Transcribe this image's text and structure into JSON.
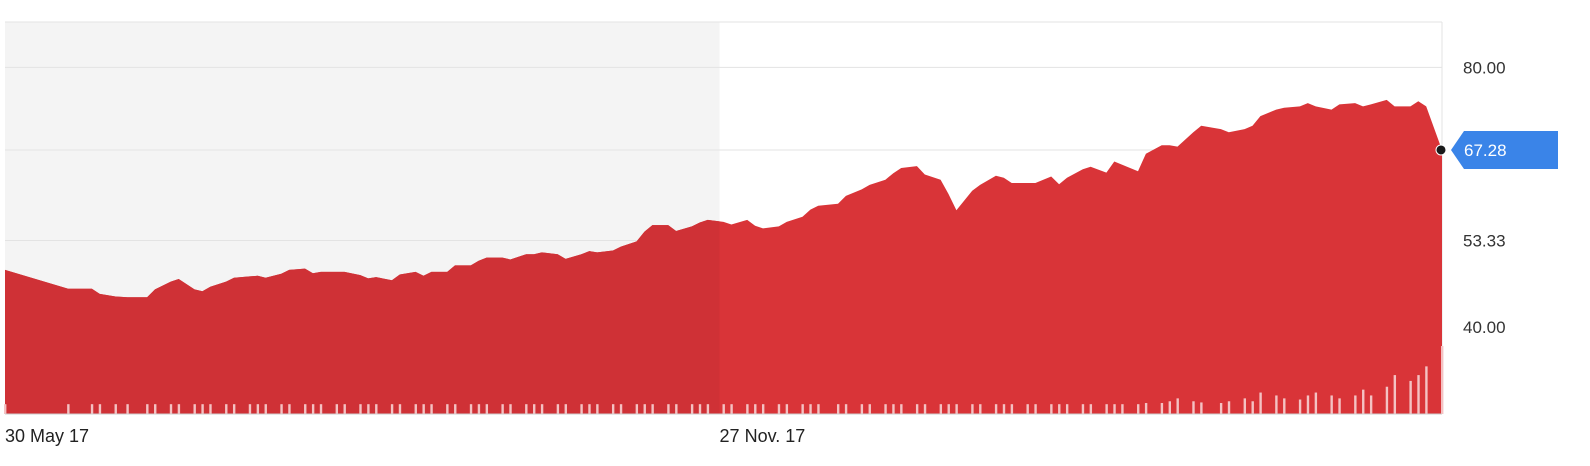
{
  "colors": {
    "area": "#d93438",
    "area_shaded": "#cf3136",
    "period_shade": "#f4f4f4",
    "volume": "#f4c2c3",
    "badge": "#3a84e8",
    "grid": "#e3e3e3"
  },
  "chart_data": {
    "type": "area",
    "ylim": [
      26.6,
      87.0
    ],
    "y_ticks": [
      "80.00",
      "53.33",
      "40.00"
    ],
    "x_tick_labels": [
      "30 May 17",
      "27 Nov. 17"
    ],
    "last_value_label": "67.28",
    "shaded_period": [
      "30 May 17",
      "27 Nov. 17"
    ],
    "series": [
      {
        "x": [
          "2017-05-30",
          "2017-06-15",
          "2017-06-21",
          "2017-06-23",
          "2017-06-27",
          "2017-06-30",
          "2017-07-05",
          "2017-07-07",
          "2017-07-11",
          "2017-07-13",
          "2017-07-17",
          "2017-07-19",
          "2017-07-21",
          "2017-07-25",
          "2017-07-27",
          "2017-07-31",
          "2017-08-02",
          "2017-08-04",
          "2017-08-08",
          "2017-08-10",
          "2017-08-14",
          "2017-08-16",
          "2017-08-18",
          "2017-08-22",
          "2017-08-24",
          "2017-08-28",
          "2017-08-30",
          "2017-09-01",
          "2017-09-05",
          "2017-09-07",
          "2017-09-11",
          "2017-09-13",
          "2017-09-15",
          "2017-09-19",
          "2017-09-21",
          "2017-09-25",
          "2017-09-27",
          "2017-09-29",
          "2017-10-03",
          "2017-10-05",
          "2017-10-09",
          "2017-10-11",
          "2017-10-13",
          "2017-10-17",
          "2017-10-19",
          "2017-10-23",
          "2017-10-25",
          "2017-10-27",
          "2017-10-31",
          "2017-11-02",
          "2017-11-06",
          "2017-11-08",
          "2017-11-10",
          "2017-11-14",
          "2017-11-16",
          "2017-11-20",
          "2017-11-22",
          "2017-11-24",
          "2017-11-28",
          "2017-11-30",
          "2017-12-04",
          "2017-12-06",
          "2017-12-08",
          "2017-12-12",
          "2017-12-14",
          "2017-12-18",
          "2017-12-20",
          "2017-12-22",
          "2017-12-27",
          "2017-12-29",
          "2018-01-02",
          "2018-01-04",
          "2018-01-08",
          "2018-01-10",
          "2018-01-12",
          "2018-01-16",
          "2018-01-18",
          "2018-01-22",
          "2018-01-24",
          "2018-01-26",
          "2018-01-30",
          "2018-02-01",
          "2018-02-05",
          "2018-02-07",
          "2018-02-09",
          "2018-02-13",
          "2018-02-15",
          "2018-02-19",
          "2018-02-21",
          "2018-02-23",
          "2018-02-27",
          "2018-03-01",
          "2018-03-05",
          "2018-03-07",
          "2018-03-09",
          "2018-03-13",
          "2018-03-15",
          "2018-03-19",
          "2018-03-21",
          "2018-03-23",
          "2018-03-27",
          "2018-03-29",
          "2018-04-03",
          "2018-04-05",
          "2018-04-09",
          "2018-04-11",
          "2018-04-13",
          "2018-04-17",
          "2018-04-19",
          "2018-04-23",
          "2018-04-25",
          "2018-04-27",
          "2018-05-01",
          "2018-05-03",
          "2018-05-07",
          "2018-05-09",
          "2018-05-11",
          "2018-05-15",
          "2018-05-17",
          "2018-05-21",
          "2018-05-23",
          "2018-05-25",
          "2018-05-29"
        ],
        "values": [
          48.8,
          45.9,
          45.9,
          45.1,
          44.7,
          44.6,
          44.6,
          45.8,
          47.0,
          47.4,
          45.8,
          45.5,
          46.2,
          47.0,
          47.6,
          47.8,
          47.9,
          47.6,
          48.2,
          48.8,
          49.0,
          48.3,
          48.5,
          48.5,
          48.5,
          48.0,
          47.5,
          47.7,
          47.2,
          48.1,
          48.5,
          47.9,
          48.5,
          48.5,
          49.5,
          49.5,
          50.2,
          50.7,
          50.7,
          50.4,
          51.2,
          51.2,
          51.5,
          51.2,
          50.5,
          51.2,
          51.7,
          51.5,
          51.8,
          52.4,
          53.2,
          54.7,
          55.7,
          55.7,
          54.8,
          55.5,
          56.1,
          56.5,
          56.2,
          55.8,
          56.5,
          55.6,
          55.2,
          55.5,
          56.2,
          57.0,
          58.1,
          58.7,
          59.0,
          60.2,
          61.2,
          61.9,
          62.7,
          63.7,
          64.5,
          64.8,
          63.5,
          62.7,
          60.5,
          58.0,
          61.0,
          61.9,
          63.3,
          63.0,
          62.2,
          62.2,
          62.2,
          63.2,
          62.0,
          63.0,
          64.3,
          64.7,
          63.8,
          65.5,
          65.0,
          64.0,
          66.7,
          68.0,
          68.0,
          67.8,
          70.0,
          71.0,
          70.5,
          70.0,
          70.5,
          71.0,
          72.5,
          73.5,
          73.8,
          74.0,
          74.5,
          74.0,
          73.5,
          74.3,
          74.5,
          74.0,
          74.3,
          75.0,
          74.0,
          74.0,
          74.8,
          74.0,
          67.28
        ],
        "volume": [
          1,
          1,
          1,
          1,
          1,
          1,
          1,
          1,
          1,
          1,
          1,
          1,
          1,
          1,
          1,
          1,
          1,
          1,
          1,
          1,
          1,
          1,
          1,
          1,
          1,
          1,
          1,
          1,
          1,
          1,
          1,
          1,
          1,
          1,
          1,
          1,
          1,
          1,
          1,
          1,
          1,
          1,
          1,
          1,
          1,
          1,
          1,
          1,
          1,
          1,
          1,
          1,
          1,
          1,
          1,
          1,
          1,
          1,
          1,
          1,
          1,
          1,
          1,
          1,
          1,
          1,
          1,
          1,
          1,
          1,
          1,
          1,
          1,
          1,
          1,
          1,
          1,
          1,
          1,
          1,
          1,
          1,
          1,
          1,
          1,
          1,
          1,
          1,
          1,
          1,
          1,
          1,
          1,
          1,
          1,
          1,
          1.2,
          1.2,
          1.5,
          2,
          1.5,
          1.3,
          1.2,
          1.5,
          2,
          1.5,
          3,
          2.5,
          2,
          1.8,
          2.5,
          3,
          2.5,
          2,
          2.5,
          3.5,
          2.5,
          4,
          6,
          5,
          6,
          7.5,
          11
        ]
      }
    ]
  }
}
